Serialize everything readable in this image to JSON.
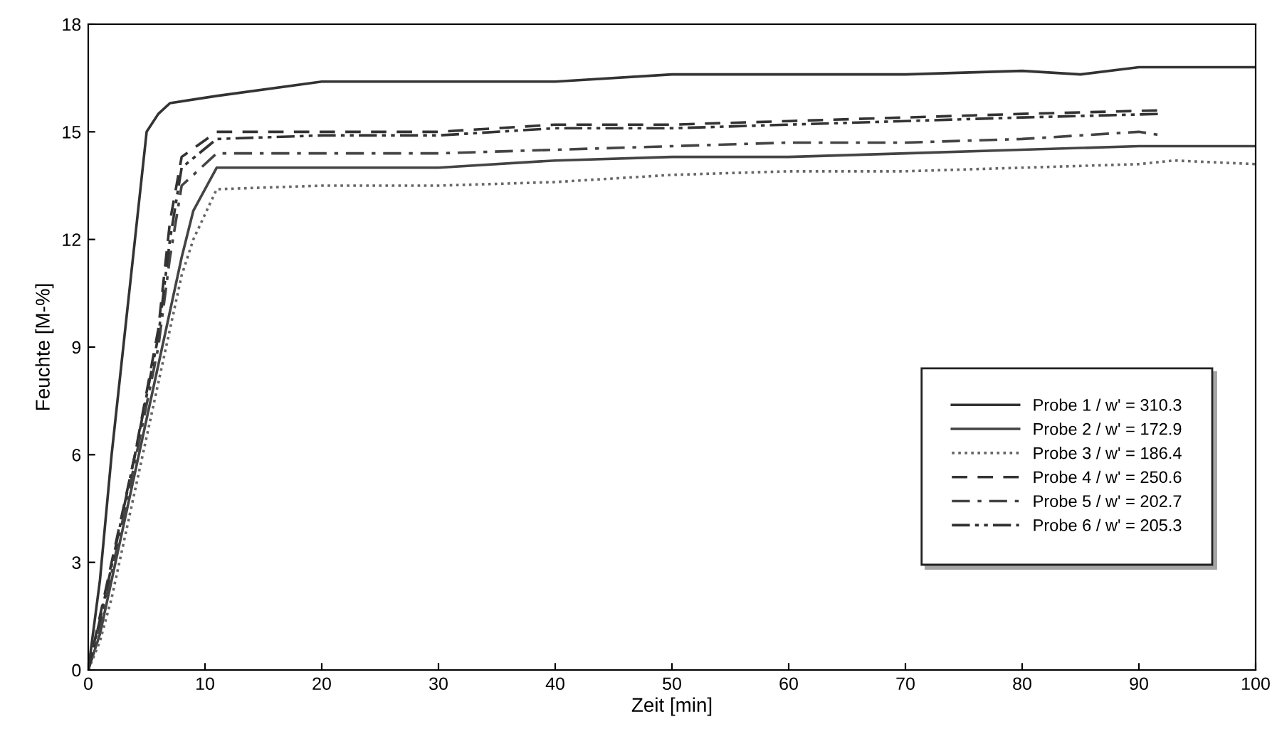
{
  "chart_data": {
    "type": "line",
    "xlabel": "Zeit [min]",
    "ylabel": "Feuchte [M-%]",
    "xlim": [
      0,
      100
    ],
    "xticks": [
      0,
      10,
      20,
      30,
      40,
      50,
      60,
      70,
      80,
      90,
      100
    ],
    "ylim": [
      0,
      18
    ],
    "yticks": [
      0,
      3,
      6,
      9,
      12,
      15,
      18
    ],
    "grid": false,
    "legend": "lower right",
    "marker": "none",
    "series": [
      {
        "name": "Probe 1 / w' = 310.3",
        "color": "#333333",
        "line_style": "solid",
        "x": [
          0,
          1,
          2,
          3,
          4,
          5,
          6,
          7,
          11,
          20,
          30,
          40,
          50,
          60,
          70,
          80,
          85,
          90,
          100
        ],
        "values": [
          0,
          2.5,
          6,
          9,
          12,
          15,
          15.5,
          15.8,
          16.0,
          16.4,
          16.4,
          16.4,
          16.6,
          16.6,
          16.6,
          16.7,
          16.6,
          16.8,
          16.8
        ]
      },
      {
        "name": "Probe 2 / w' = 172.9",
        "color": "#444444",
        "line_style": "solid",
        "x": [
          0,
          1,
          2,
          4,
          6,
          8,
          9,
          11,
          20,
          30,
          40,
          50,
          60,
          70,
          80,
          90,
          100
        ],
        "values": [
          0,
          1.0,
          2.5,
          5.5,
          8.5,
          11.5,
          12.8,
          14.0,
          14.0,
          14.0,
          14.2,
          14.3,
          14.3,
          14.4,
          14.5,
          14.6,
          14.6
        ]
      },
      {
        "name": "Probe 3 / w' = 186.4",
        "color": "#666666",
        "line_style": "dotted",
        "x": [
          0,
          1,
          2,
          4,
          6,
          8,
          9,
          11,
          20,
          30,
          40,
          50,
          60,
          70,
          80,
          90,
          93,
          100
        ],
        "values": [
          0,
          0.8,
          2.0,
          5.0,
          8.0,
          11.0,
          12.0,
          13.4,
          13.5,
          13.5,
          13.6,
          13.8,
          13.9,
          13.9,
          14.0,
          14.1,
          14.2,
          14.1
        ]
      },
      {
        "name": "Probe 4 / w' = 250.6",
        "color": "#333333",
        "line_style": "dashed",
        "x": [
          0,
          1,
          2,
          4,
          6,
          7,
          8,
          11,
          20,
          30,
          40,
          50,
          60,
          70,
          80,
          92
        ],
        "values": [
          0,
          1.5,
          3.0,
          6.0,
          9.5,
          12.5,
          14.3,
          15.0,
          15.0,
          15.0,
          15.2,
          15.2,
          15.3,
          15.4,
          15.5,
          15.6
        ]
      },
      {
        "name": "Probe 5 / w' = 202.7",
        "color": "#444444",
        "line_style": "dashdot",
        "x": [
          0,
          1,
          2,
          4,
          6,
          7,
          8,
          11,
          20,
          30,
          40,
          50,
          60,
          70,
          80,
          90,
          92
        ],
        "values": [
          0,
          1.2,
          2.7,
          5.8,
          9.0,
          11.5,
          13.5,
          14.4,
          14.4,
          14.4,
          14.5,
          14.6,
          14.7,
          14.7,
          14.8,
          15.0,
          14.9
        ]
      },
      {
        "name": "Probe 6 / w' = 205.3",
        "color": "#333333",
        "line_style": "dashdotdot",
        "x": [
          0,
          1,
          2,
          4,
          6,
          7,
          8,
          11,
          20,
          30,
          40,
          50,
          60,
          70,
          80,
          92
        ],
        "values": [
          0,
          1.4,
          2.9,
          6.0,
          9.3,
          12.0,
          14.0,
          14.8,
          14.9,
          14.9,
          15.1,
          15.1,
          15.2,
          15.3,
          15.4,
          15.5
        ]
      }
    ]
  }
}
